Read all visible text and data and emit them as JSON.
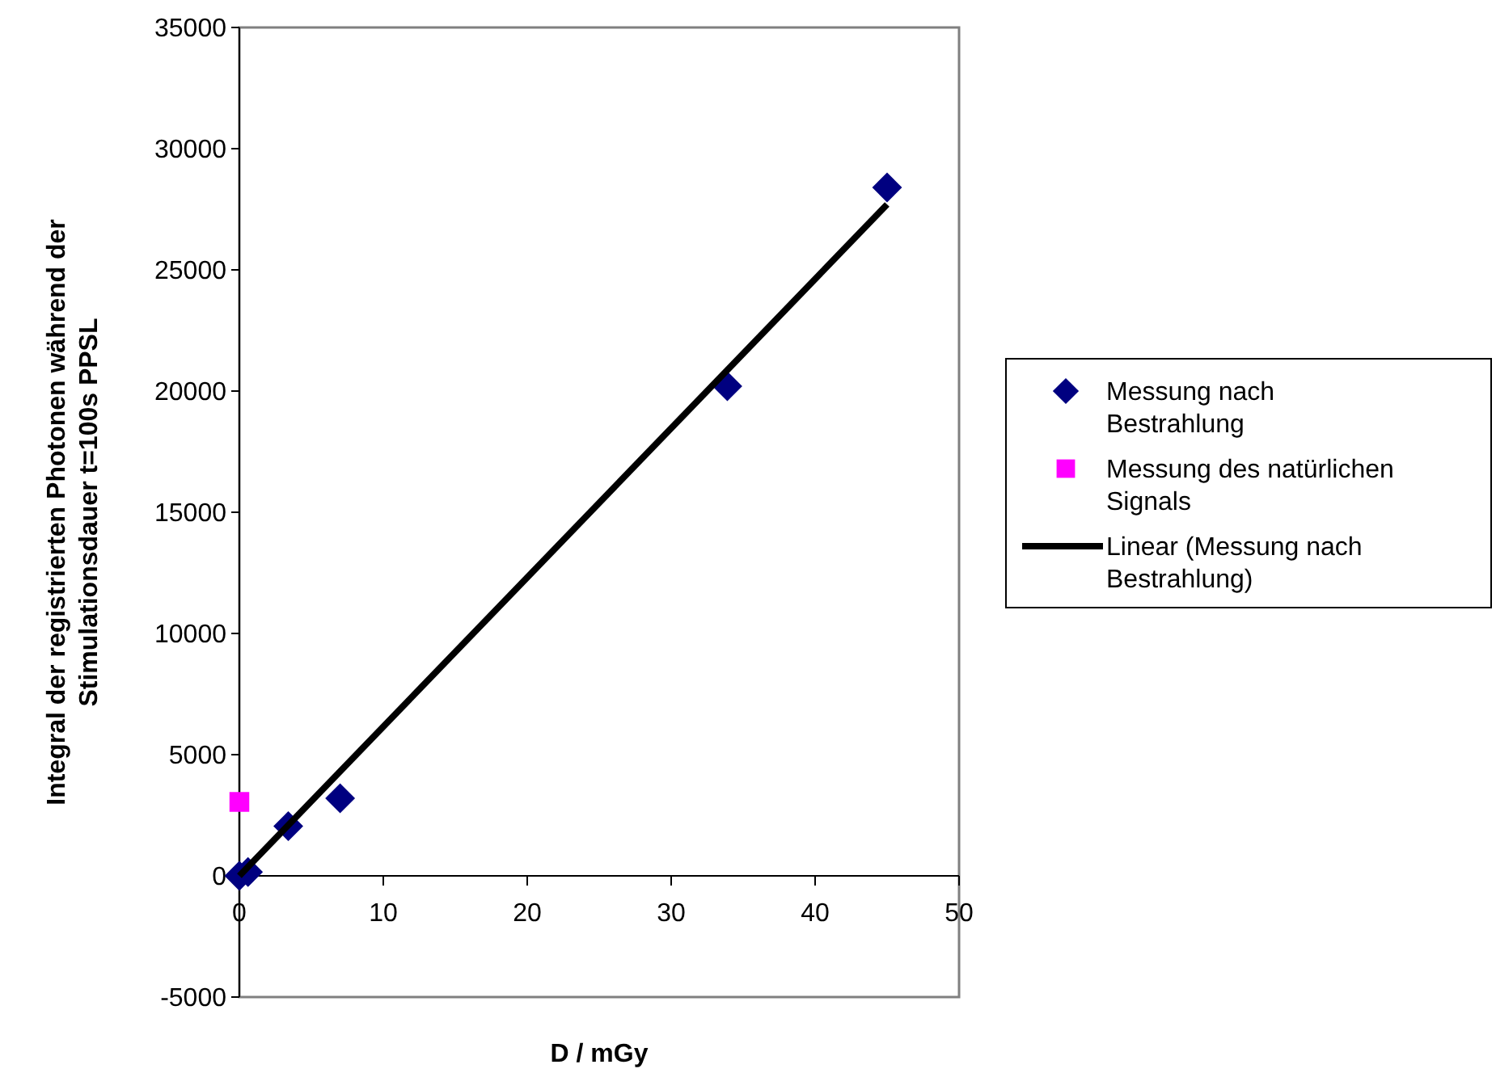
{
  "chart_data": {
    "type": "scatter",
    "xlabel": "D / mGy",
    "ylabel": "Integral der registrierten Photonen während der Stimulationsdauer t=100s PPSL",
    "xlim": [
      0,
      50
    ],
    "ylim": [
      -5000,
      35000
    ],
    "xticks": [
      0,
      10,
      20,
      30,
      40,
      50
    ],
    "yticks": [
      -5000,
      0,
      5000,
      10000,
      15000,
      20000,
      25000,
      30000,
      35000
    ],
    "grid": false,
    "legend": "right",
    "series": [
      {
        "name": "Messung nach Bestrahlung",
        "color": "#000080",
        "marker": "diamond",
        "x": [
          0,
          0.6,
          3.4,
          7,
          33.9,
          45
        ],
        "values": [
          0,
          160,
          2050,
          3200,
          20200,
          28400
        ]
      },
      {
        "name": "Messung des natürlichen Signals",
        "color": "#ff00ff",
        "marker": "square",
        "x": [
          0
        ],
        "values": [
          3050
        ]
      },
      {
        "name": "Linear (Messung nach Bestrahlung)",
        "type": "line",
        "color": "#000000",
        "line_style": "solid",
        "x": [
          0,
          45
        ],
        "values": [
          0,
          27700
        ]
      }
    ]
  }
}
